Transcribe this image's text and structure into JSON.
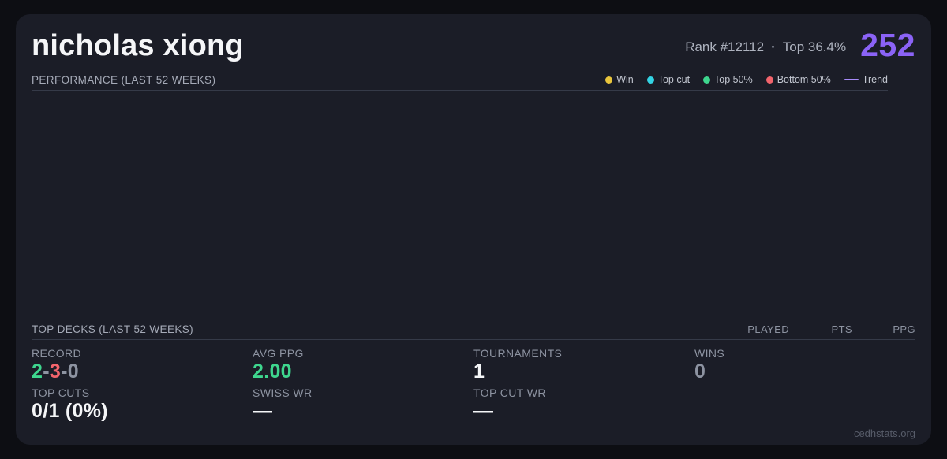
{
  "header": {
    "player_name": "nicholas xiong",
    "rank": "Rank #12112",
    "separator": "·",
    "top_percent": "Top 36.4%",
    "points": "252"
  },
  "performance": {
    "title": "PERFORMANCE (LAST 52 WEEKS)",
    "legend": {
      "win": {
        "label": "Win",
        "color": "#e9c53c"
      },
      "top_cut": {
        "label": "Top cut",
        "color": "#33d3e3"
      },
      "top_50": {
        "label": "Top 50%",
        "color": "#3ed68e"
      },
      "bottom_50": {
        "label": "Bottom 50%",
        "color": "#f2646c"
      },
      "trend": {
        "label": "Trend",
        "color": "#a78bfa"
      }
    },
    "chart_points": []
  },
  "top_decks": {
    "title": "TOP DECKS (LAST 52 WEEKS)",
    "columns": [
      "PLAYED",
      "PTS",
      "PPG"
    ],
    "rows": []
  },
  "stats": {
    "record": {
      "label": "RECORD",
      "wins": "2",
      "losses": "3",
      "draws": "0",
      "separator": "-"
    },
    "top_cuts": {
      "label": "TOP CUTS",
      "value": "0/1 (0%)"
    },
    "avg_ppg": {
      "label": "AVG PPG",
      "value": "2.00"
    },
    "swiss_wr": {
      "label": "SWISS WR",
      "value": "—"
    },
    "tournaments": {
      "label": "TOURNAMENTS",
      "value": "1"
    },
    "top_cut_wr": {
      "label": "TOP CUT WR",
      "value": "—"
    },
    "wins": {
      "label": "WINS",
      "value": "0"
    }
  },
  "footer": {
    "site": "cedhstats.org"
  },
  "colors": {
    "page_bg": "#0d0e13",
    "card_bg": "#1b1d27",
    "accent_purple": "#8b63f6",
    "trend_purple": "#a78bfa",
    "green": "#3ed68e",
    "red": "#f2646c",
    "gray": "#8d93a1",
    "win_yellow": "#e9c53c",
    "top_cut_cyan": "#33d3e3"
  }
}
